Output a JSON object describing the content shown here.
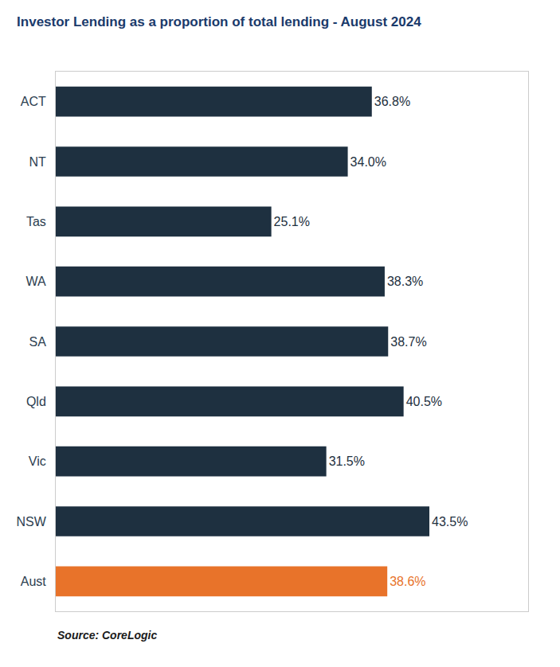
{
  "chart_data": {
    "type": "bar",
    "orientation": "horizontal",
    "title": "Investor Lending as a proportion of total lending - August 2024",
    "categories": [
      "Aust",
      "NSW",
      "Vic",
      "Qld",
      "SA",
      "WA",
      "Tas",
      "NT",
      "ACT"
    ],
    "values": [
      38.6,
      43.5,
      31.5,
      40.5,
      38.7,
      38.3,
      25.1,
      34.0,
      36.8
    ],
    "value_labels": [
      "38.6%",
      "43.5%",
      "31.5%",
      "40.5%",
      "38.7%",
      "38.3%",
      "25.1%",
      "34.0%",
      "36.8%"
    ],
    "colors": [
      "#e8732a",
      "#1e3040",
      "#1e3040",
      "#1e3040",
      "#1e3040",
      "#1e3040",
      "#1e3040",
      "#1e3040",
      "#1e3040"
    ],
    "data_labels": true,
    "xlim": [
      0,
      55
    ],
    "tick_labels": "y",
    "grid": false,
    "annotations": [
      "Source: CoreLogic"
    ]
  }
}
